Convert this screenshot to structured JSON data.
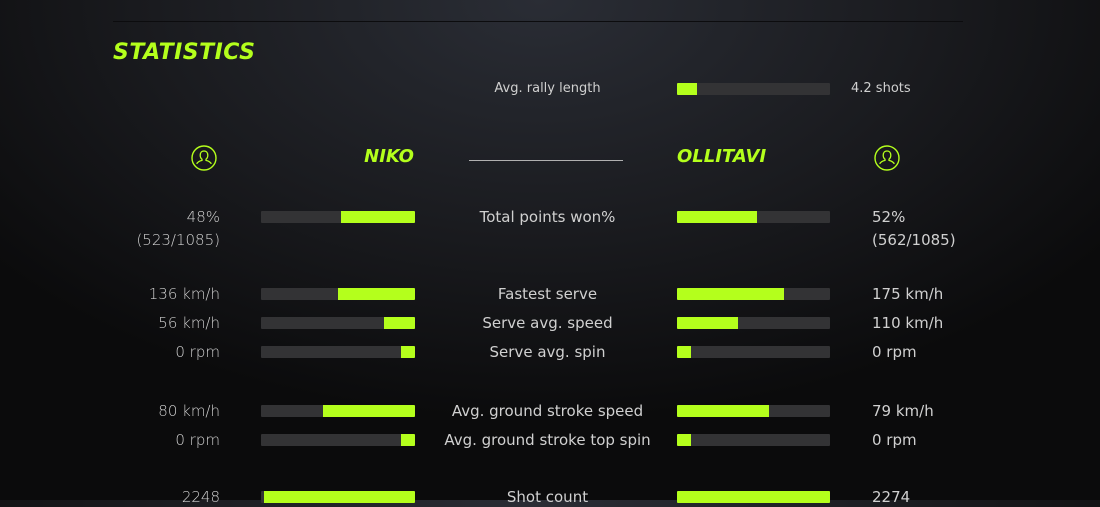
{
  "title": "STATISTICS",
  "accent_color": "#b4ff1c",
  "rally": {
    "label": "Avg. rally length",
    "value": "4.2 shots",
    "fill": 0.13
  },
  "players": {
    "left": {
      "name": "NIKO",
      "icon": "user-circle-icon"
    },
    "right": {
      "name": "OLLITAVI",
      "icon": "user-circle-icon"
    }
  },
  "stats": [
    {
      "label": "Total points won%",
      "left": "48%",
      "left_sub": "(523/1085)",
      "right": "52%",
      "right_sub": "(562/1085)",
      "left_fill": 0.48,
      "right_fill": 0.52
    },
    {
      "label": "Fastest serve",
      "left": "136 km/h",
      "right": "175 km/h",
      "left_fill": 0.5,
      "right_fill": 0.7
    },
    {
      "label": "Serve avg. speed",
      "left": "56 km/h",
      "right": "110 km/h",
      "left_fill": 0.2,
      "right_fill": 0.4
    },
    {
      "label": "Serve avg. spin",
      "left": "0 rpm",
      "right": "0 rpm",
      "left_fill": 0.09,
      "right_fill": 0.09
    },
    {
      "label": "Avg. ground stroke speed",
      "left": "80 km/h",
      "right": "79 km/h",
      "left_fill": 0.6,
      "right_fill": 0.6
    },
    {
      "label": "Avg. ground stroke top spin",
      "left": "0 rpm",
      "right": "0 rpm",
      "left_fill": 0.09,
      "right_fill": 0.09
    },
    {
      "label": "Shot count",
      "left": "2248",
      "right": "2274",
      "left_fill": 0.98,
      "right_fill": 1.0
    }
  ]
}
